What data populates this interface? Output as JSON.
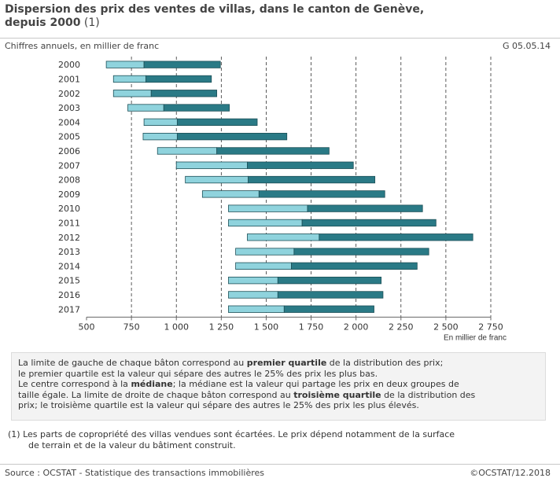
{
  "header": {
    "title_line1": "Dispersion des prix des ventes de villas, dans le canton de  Genève,",
    "title_line2_bold": "depuis 2000",
    "title_line2_note": " (1)",
    "subtitle": "Chiffres annuels, en millier de franc",
    "code": "G 05.05.14"
  },
  "chart_data": {
    "type": "bar",
    "orientation": "horizontal-floating",
    "categories": [
      "2000",
      "2001",
      "2002",
      "2003",
      "2004",
      "2005",
      "2006",
      "2007",
      "2008",
      "2009",
      "2010",
      "2011",
      "2012",
      "2013",
      "2014",
      "2015",
      "2016",
      "2017"
    ],
    "series": [
      {
        "name": "Premier quartile",
        "values": [
          610,
          650,
          650,
          730,
          820,
          815,
          895,
          1000,
          1050,
          1145,
          1290,
          1290,
          1395,
          1330,
          1330,
          1290,
          1290,
          1290
        ]
      },
      {
        "name": "Médiane",
        "values": [
          820,
          830,
          860,
          930,
          1005,
          1005,
          1225,
          1395,
          1400,
          1460,
          1730,
          1700,
          1795,
          1655,
          1640,
          1565,
          1565,
          1600
        ]
      },
      {
        "name": "Troisième quartile",
        "values": [
          1245,
          1195,
          1225,
          1295,
          1450,
          1615,
          1850,
          1985,
          2105,
          2160,
          2370,
          2445,
          2650,
          2405,
          2340,
          2140,
          2150,
          2100
        ]
      }
    ],
    "xticks": [
      "500",
      "750",
      "1 000",
      "1 250",
      "1 500",
      "1 750",
      "2 000",
      "2 250",
      "2 500",
      "2 750"
    ],
    "xlim": [
      500,
      2750
    ],
    "xlabel": "En millier de franc",
    "colors": {
      "q1_to_median": "#8fd3dd",
      "median_to_q3": "#2a7a86",
      "border": "#1d4f57",
      "gridline": "#333333"
    },
    "grid": "vertical dashed"
  },
  "explanation": {
    "p1_a": "La limite de gauche de chaque bâton correspond au ",
    "p1_b": "premier quartile",
    "p1_c": " de la distribution des prix;",
    "p2": "le premier quartile est la valeur qui sépare des autres le 25% des prix les plus bas.",
    "p3_a": "Le centre correspond à la ",
    "p3_b": "médiane",
    "p3_c": "; la médiane est la valeur qui partage les prix en deux groupes de",
    "p4_a": "taille égale. La limite de droite de chaque bâton correspond au ",
    "p4_b": "troisième quartile",
    "p4_c": " de la distribution des",
    "p5": "prix; le troisième quartile est la valeur qui sépare des autres le 25% des prix les plus élevés."
  },
  "footnote": {
    "line1": "(1) Les parts de copropriété des villas vendues sont écartées. Le prix dépend notamment de la surface",
    "line2": "de terrain et de la valeur du bâtiment construit."
  },
  "footer": {
    "source": "Source : OCSTAT - Statistique des transactions immobilières",
    "copyright": "©OCSTAT/12.2018"
  }
}
